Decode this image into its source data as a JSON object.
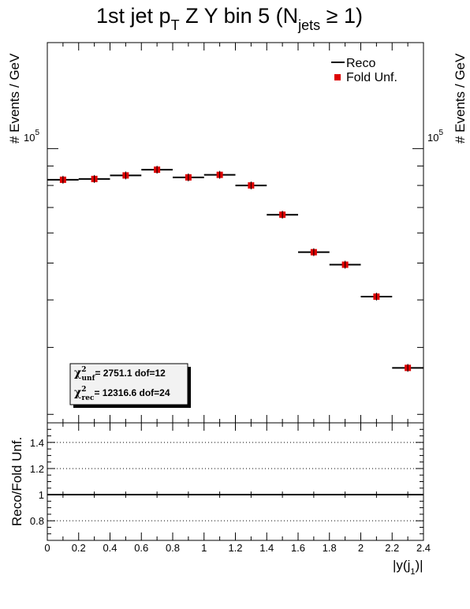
{
  "chart_data": [
    {
      "type": "scatter",
      "title_main": "1st jet p",
      "title_sub": "T",
      "title_mid": " Z Y bin 5 (N",
      "title_sub2": "jets",
      "title_end": " ≥ 1)",
      "ylabel": "# Events / GeV",
      "y_scale": "log",
      "ylim": [
        19000,
        190000
      ],
      "y_tick_label": "10",
      "y_tick_exp": "5",
      "x_edges": [
        0,
        0.2,
        0.4,
        0.6,
        0.8,
        1.0,
        1.2,
        1.4,
        1.6,
        1.8,
        2.0,
        2.2,
        2.4
      ],
      "series": [
        {
          "name": "Reco",
          "style": "line",
          "color": "#000000",
          "values": [
            82800,
            83200,
            85000,
            88000,
            84000,
            85300,
            80000,
            67000,
            53400,
            49500,
            40800,
            26500
          ]
        },
        {
          "name": "Fold Unf.",
          "style": "marker",
          "color": "#dd0000",
          "values": [
            82800,
            83200,
            85000,
            88000,
            84000,
            85300,
            80000,
            67000,
            53400,
            49500,
            40800,
            26500
          ]
        }
      ],
      "legend": {
        "position": "top-right",
        "entries": [
          {
            "label": "Reco",
            "color": "#000000",
            "marker": "line"
          },
          {
            "label": "Fold Unf.",
            "color": "#dd0000",
            "marker": "square"
          }
        ]
      },
      "stats": {
        "unf_label": "χ",
        "unf_sub": "unf",
        "unf_sup": "2",
        "unf_value": "=   2751.1  dof=12",
        "rec_label": "χ",
        "rec_sub": "rec",
        "rec_sup": "2",
        "rec_value": "=  12316.6  dof=24"
      }
    },
    {
      "type": "scatter",
      "ylabel": "Reco/Fold Unf.",
      "xlabel": "|y(j",
      "xlabel_sub": "1",
      "xlabel_end": ")|",
      "xlim": [
        0,
        2.4
      ],
      "ylim": [
        0.65,
        1.55
      ],
      "x_ticks": [
        0,
        0.2,
        0.4,
        0.6,
        0.8,
        1,
        1.2,
        1.4,
        1.6,
        1.8,
        2,
        2.2,
        2.4
      ],
      "x_tick_labels": [
        "0",
        "0.2",
        "0.4",
        "0.6",
        "0.8",
        "1",
        "1.2",
        "1.4",
        "1.6",
        "1.8",
        "2",
        "2.2",
        "2.4"
      ],
      "y_ticks": [
        0.8,
        1.0,
        1.2,
        1.4
      ],
      "y_tick_labels": [
        "0.8",
        "1",
        "1.2",
        "1.4"
      ],
      "gridlines_y": [
        0.8,
        1.0,
        1.2,
        1.4
      ],
      "x": [
        0.1,
        0.3,
        0.5,
        0.7,
        0.9,
        1.1,
        1.3,
        1.5,
        1.7,
        1.9,
        2.1,
        2.3
      ],
      "values": [
        1,
        1,
        1,
        1,
        1,
        1,
        1,
        1,
        1,
        1,
        1,
        1
      ]
    }
  ]
}
